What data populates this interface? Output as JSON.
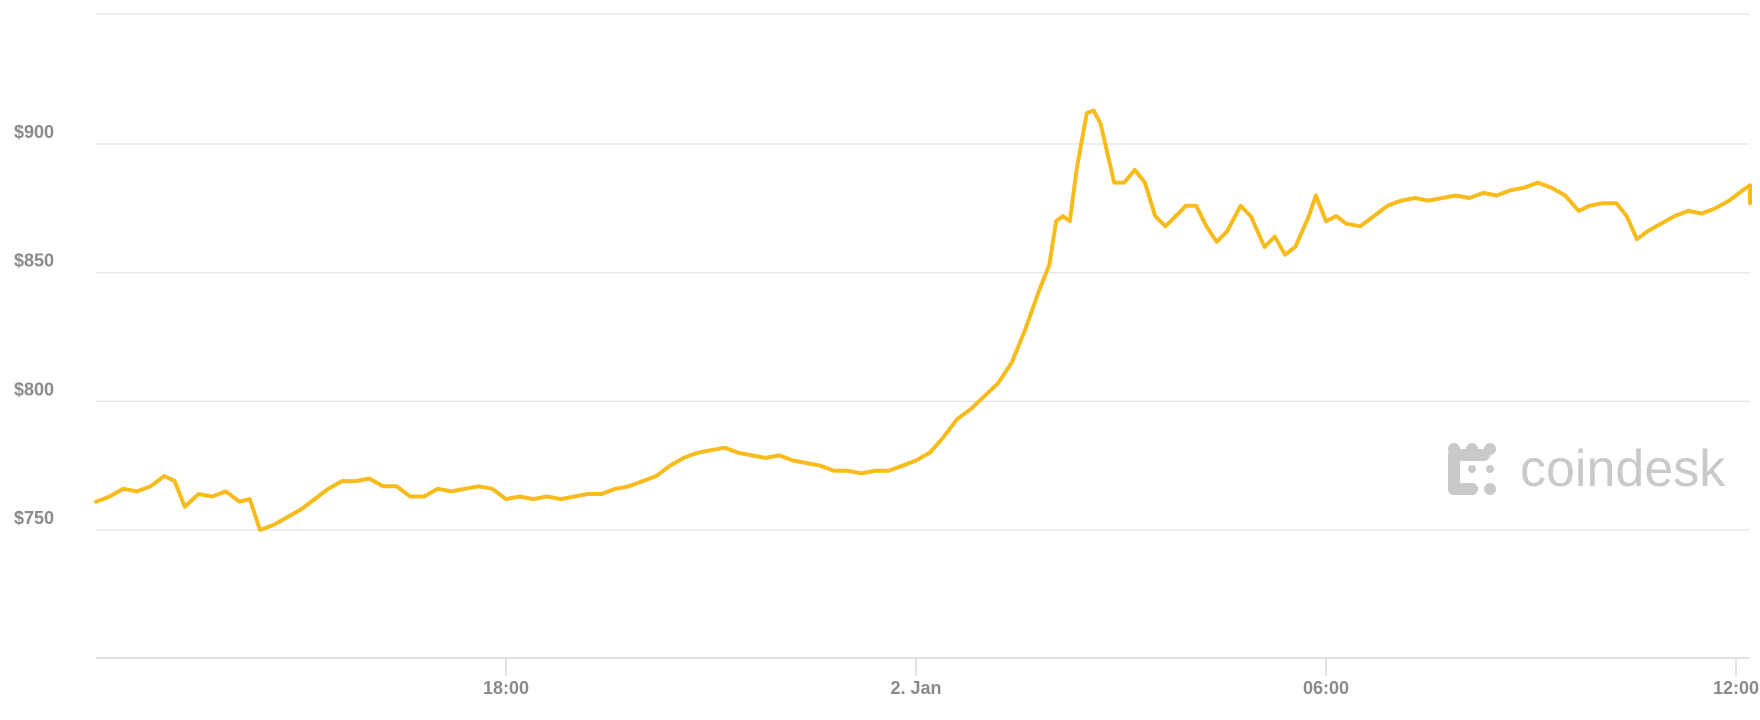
{
  "chart_data": {
    "type": "line",
    "y_unit_prefix": "$",
    "ylim": [
      700,
      950
    ],
    "y_ticks": [
      750,
      800,
      850,
      900
    ],
    "y_tick_labels": [
      "$750",
      "$800",
      "$850",
      "$900"
    ],
    "x_ticks": [
      {
        "label": "18:00",
        "hour": 18
      },
      {
        "label": "2. Jan",
        "hour": 24
      },
      {
        "label": "06:00",
        "hour": 30
      },
      {
        "label": "12:00",
        "hour": 36
      }
    ],
    "xlim_hours": [
      12,
      36
    ],
    "grid": true,
    "line_color": "#f7bc1b",
    "series": [
      {
        "points": [
          [
            12.0,
            761
          ],
          [
            12.2,
            763
          ],
          [
            12.4,
            766
          ],
          [
            12.6,
            765
          ],
          [
            12.8,
            767
          ],
          [
            13.0,
            771
          ],
          [
            13.15,
            769
          ],
          [
            13.3,
            759
          ],
          [
            13.5,
            764
          ],
          [
            13.7,
            763
          ],
          [
            13.9,
            765
          ],
          [
            14.1,
            761
          ],
          [
            14.25,
            762
          ],
          [
            14.4,
            750
          ],
          [
            14.6,
            752
          ],
          [
            14.8,
            755
          ],
          [
            15.0,
            758
          ],
          [
            15.2,
            762
          ],
          [
            15.4,
            766
          ],
          [
            15.6,
            769
          ],
          [
            15.8,
            769
          ],
          [
            16.0,
            770
          ],
          [
            16.2,
            767
          ],
          [
            16.4,
            767
          ],
          [
            16.6,
            763
          ],
          [
            16.8,
            763
          ],
          [
            17.0,
            766
          ],
          [
            17.2,
            765
          ],
          [
            17.4,
            766
          ],
          [
            17.6,
            767
          ],
          [
            17.8,
            766
          ],
          [
            18.0,
            762
          ],
          [
            18.2,
            763
          ],
          [
            18.4,
            762
          ],
          [
            18.6,
            763
          ],
          [
            18.8,
            762
          ],
          [
            19.0,
            763
          ],
          [
            19.2,
            764
          ],
          [
            19.4,
            764
          ],
          [
            19.6,
            766
          ],
          [
            19.8,
            767
          ],
          [
            20.0,
            769
          ],
          [
            20.2,
            771
          ],
          [
            20.4,
            775
          ],
          [
            20.6,
            778
          ],
          [
            20.8,
            780
          ],
          [
            21.0,
            781
          ],
          [
            21.2,
            782
          ],
          [
            21.4,
            780
          ],
          [
            21.6,
            779
          ],
          [
            21.8,
            778
          ],
          [
            22.0,
            779
          ],
          [
            22.2,
            777
          ],
          [
            22.4,
            776
          ],
          [
            22.6,
            775
          ],
          [
            22.8,
            773
          ],
          [
            23.0,
            773
          ],
          [
            23.2,
            772
          ],
          [
            23.4,
            773
          ],
          [
            23.6,
            773
          ],
          [
            23.8,
            775
          ],
          [
            24.0,
            777
          ],
          [
            24.2,
            780
          ],
          [
            24.4,
            786
          ],
          [
            24.6,
            793
          ],
          [
            24.8,
            797
          ],
          [
            25.0,
            802
          ],
          [
            25.2,
            807
          ],
          [
            25.4,
            815
          ],
          [
            25.6,
            828
          ],
          [
            25.8,
            843
          ],
          [
            25.95,
            853
          ],
          [
            26.05,
            870
          ],
          [
            26.15,
            872
          ],
          [
            26.25,
            870
          ],
          [
            26.35,
            890
          ],
          [
            26.5,
            912
          ],
          [
            26.6,
            913
          ],
          [
            26.7,
            908
          ],
          [
            26.9,
            885
          ],
          [
            27.05,
            885
          ],
          [
            27.2,
            890
          ],
          [
            27.35,
            885
          ],
          [
            27.5,
            872
          ],
          [
            27.65,
            868
          ],
          [
            27.8,
            872
          ],
          [
            27.95,
            876
          ],
          [
            28.1,
            876
          ],
          [
            28.25,
            868
          ],
          [
            28.4,
            862
          ],
          [
            28.55,
            866
          ],
          [
            28.75,
            876
          ],
          [
            28.9,
            872
          ],
          [
            29.1,
            860
          ],
          [
            29.25,
            864
          ],
          [
            29.4,
            857
          ],
          [
            29.55,
            860
          ],
          [
            29.75,
            872
          ],
          [
            29.85,
            880
          ],
          [
            30.0,
            870
          ],
          [
            30.15,
            872
          ],
          [
            30.3,
            869
          ],
          [
            30.5,
            868
          ],
          [
            30.7,
            872
          ],
          [
            30.9,
            876
          ],
          [
            31.1,
            878
          ],
          [
            31.3,
            879
          ],
          [
            31.5,
            878
          ],
          [
            31.7,
            879
          ],
          [
            31.9,
            880
          ],
          [
            32.1,
            879
          ],
          [
            32.3,
            881
          ],
          [
            32.5,
            880
          ],
          [
            32.7,
            882
          ],
          [
            32.9,
            883
          ],
          [
            33.1,
            885
          ],
          [
            33.3,
            883
          ],
          [
            33.5,
            880
          ],
          [
            33.7,
            874
          ],
          [
            33.85,
            876
          ],
          [
            34.05,
            877
          ],
          [
            34.25,
            877
          ],
          [
            34.4,
            872
          ],
          [
            34.55,
            863
          ],
          [
            34.7,
            866
          ],
          [
            34.9,
            869
          ],
          [
            35.1,
            872
          ],
          [
            35.3,
            874
          ],
          [
            35.5,
            873
          ],
          [
            35.7,
            875
          ],
          [
            35.9,
            878
          ],
          [
            36.1,
            882
          ],
          [
            36.3,
            884
          ],
          [
            36.45,
            884
          ],
          [
            36.6,
            879
          ],
          [
            36.8,
            877
          ],
          [
            37.0,
            880
          ]
        ]
      }
    ]
  },
  "logo": {
    "text": "coindesk"
  }
}
